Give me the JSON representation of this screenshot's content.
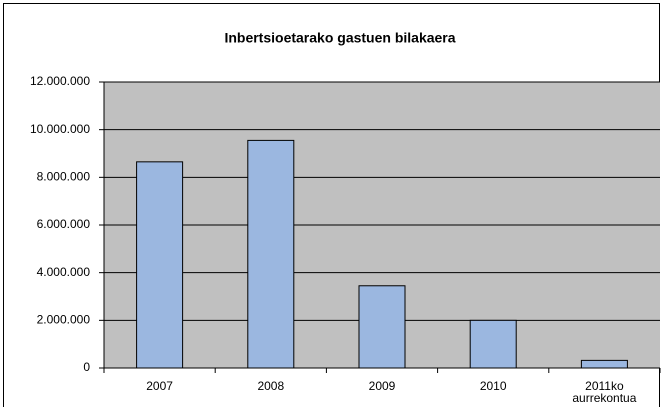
{
  "chart_data": {
    "type": "bar",
    "title": "Inbertsioetarako gastuen bilakaera",
    "categories": [
      "2007",
      "2008",
      "2009",
      "2010",
      "2011ko aurrekontua"
    ],
    "values": [
      8650000,
      9550000,
      3450000,
      2000000,
      320000
    ],
    "color": "#9bb7e0",
    "ylim": [
      0,
      12000000
    ],
    "yticks": [
      0,
      {
        "value": 2000000,
        "label": "2.000.000"
      },
      {
        "value": 4000000,
        "label": "4.000.000"
      },
      {
        "value": 6000000,
        "label": "6.000.000"
      },
      {
        "value": 8000000,
        "label": "8.000.000"
      },
      {
        "value": 10000000,
        "label": "10.000.000"
      },
      {
        "value": 12000000,
        "label": "12.000.000"
      }
    ],
    "grid": true
  }
}
